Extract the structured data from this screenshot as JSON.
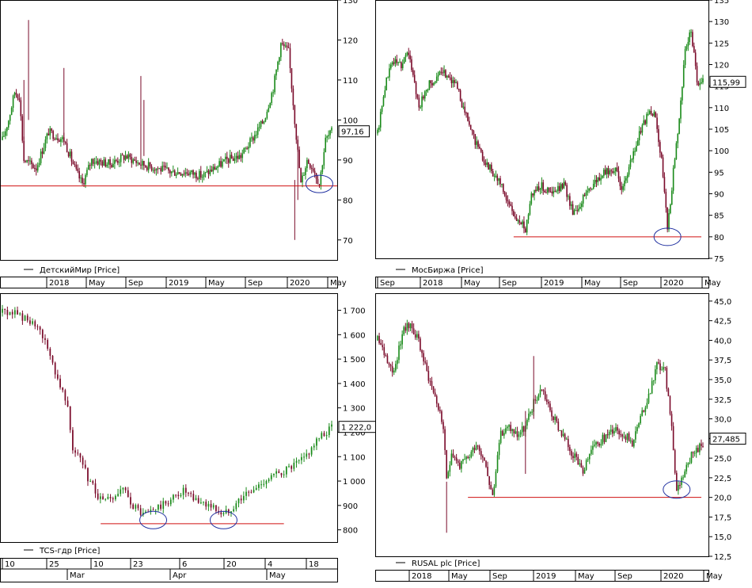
{
  "charts": [
    {
      "type": "candlestick",
      "legend": "ДетскийМир [Price]",
      "last_price_label": "97,16",
      "y_ticks": [
        130,
        120,
        110,
        100,
        90,
        80,
        70
      ],
      "y_tick_labels": [
        "130",
        "120",
        "110",
        "100",
        "90",
        "80",
        "70"
      ],
      "ylim": [
        65,
        130
      ],
      "x_ticks": [
        "2018",
        "May",
        "Sep",
        "2019",
        "May",
        "Sep",
        "2020",
        "May"
      ],
      "support_level": 83.5,
      "last_value": 97.16,
      "anchors": [
        [
          0,
          95
        ],
        [
          4,
          100
        ],
        [
          8,
          107
        ],
        [
          11,
          106
        ],
        [
          14,
          90
        ],
        [
          22,
          88
        ],
        [
          30,
          97
        ],
        [
          40,
          95
        ],
        [
          48,
          87
        ],
        [
          52,
          84
        ],
        [
          58,
          90
        ],
        [
          70,
          89
        ],
        [
          80,
          91
        ],
        [
          90,
          89
        ],
        [
          100,
          88
        ],
        [
          110,
          87
        ],
        [
          120,
          87
        ],
        [
          130,
          86
        ],
        [
          138,
          88
        ],
        [
          146,
          90
        ],
        [
          155,
          91
        ],
        [
          162,
          95
        ],
        [
          170,
          100
        ],
        [
          176,
          108
        ],
        [
          181,
          119
        ],
        [
          186,
          117
        ],
        [
          190,
          100
        ],
        [
          194,
          84
        ],
        [
          198,
          90
        ],
        [
          202,
          88
        ],
        [
          206,
          84
        ],
        [
          210,
          95
        ],
        [
          214,
          97
        ]
      ],
      "n": 215,
      "spikes": [
        [
          17,
          125,
          100
        ],
        [
          14,
          110,
          95
        ],
        [
          40,
          113,
          95
        ],
        [
          90,
          111,
          90
        ],
        [
          92,
          105,
          91
        ],
        [
          190,
          85,
          70
        ],
        [
          192,
          95,
          80
        ]
      ],
      "circle_index": 206,
      "circle_value": 84
    },
    {
      "type": "candlestick",
      "legend": "МосБиржа [Price]",
      "last_price_label": "115,99",
      "y_ticks": [
        135,
        130,
        125,
        120,
        115,
        110,
        105,
        100,
        95,
        90,
        85,
        80,
        75
      ],
      "y_tick_labels": [
        "135",
        "130",
        "125",
        "120",
        "115",
        "110",
        "105",
        "100",
        "95",
        "90",
        "85",
        "80",
        "75"
      ],
      "ylim": [
        75,
        135
      ],
      "x_ticks": [
        "Sep",
        "2018",
        "May",
        "Sep",
        "2019",
        "May",
        "Sep",
        "2020",
        "May"
      ],
      "support_level": 80,
      "last_value": 115.99,
      "anchors": [
        [
          0,
          104
        ],
        [
          5,
          115
        ],
        [
          10,
          121
        ],
        [
          16,
          120
        ],
        [
          20,
          123
        ],
        [
          24,
          118
        ],
        [
          28,
          110
        ],
        [
          34,
          115
        ],
        [
          40,
          117
        ],
        [
          46,
          118
        ],
        [
          52,
          116
        ],
        [
          58,
          110
        ],
        [
          64,
          104
        ],
        [
          70,
          99
        ],
        [
          76,
          96
        ],
        [
          82,
          93
        ],
        [
          88,
          88
        ],
        [
          94,
          84
        ],
        [
          100,
          82
        ],
        [
          104,
          90
        ],
        [
          110,
          92
        ],
        [
          118,
          90
        ],
        [
          126,
          92
        ],
        [
          132,
          86
        ],
        [
          136,
          87
        ],
        [
          142,
          91
        ],
        [
          148,
          93
        ],
        [
          154,
          95
        ],
        [
          160,
          96
        ],
        [
          166,
          91
        ],
        [
          172,
          98
        ],
        [
          178,
          105
        ],
        [
          184,
          109
        ],
        [
          188,
          108
        ],
        [
          192,
          98
        ],
        [
          196,
          82
        ],
        [
          200,
          95
        ],
        [
          204,
          108
        ],
        [
          208,
          123
        ],
        [
          212,
          128
        ],
        [
          216,
          116
        ],
        [
          220,
          116
        ]
      ],
      "n": 221,
      "spikes": [],
      "circle_index": 196,
      "circle_value": 80
    },
    {
      "type": "candlestick",
      "legend": "TCS-гдр [Price]",
      "last_price_label": "1 222,0",
      "y_ticks": [
        1700,
        1600,
        1500,
        1400,
        1300,
        1200,
        1100,
        1000,
        900,
        800
      ],
      "y_tick_labels": [
        "1 700",
        "1 600",
        "1 500",
        "1 400",
        "1 300",
        "1 200",
        "1 100",
        "1 000",
        "900",
        "800"
      ],
      "ylim": [
        750,
        1770
      ],
      "x_ticks": [
        "10",
        "25",
        "Mar",
        "10",
        "23",
        "Apr",
        "6",
        "20",
        "4",
        "May",
        "18"
      ],
      "support_level": 825,
      "last_value": 1222,
      "anchors": [
        [
          0,
          1690
        ],
        [
          5,
          1690
        ],
        [
          10,
          1660
        ],
        [
          14,
          1620
        ],
        [
          18,
          1550
        ],
        [
          22,
          1420
        ],
        [
          26,
          1320
        ],
        [
          28,
          1130
        ],
        [
          31,
          1090
        ],
        [
          34,
          1010
        ],
        [
          37,
          960
        ],
        [
          40,
          910
        ],
        [
          44,
          930
        ],
        [
          48,
          960
        ],
        [
          52,
          900
        ],
        [
          56,
          860
        ],
        [
          60,
          880
        ],
        [
          64,
          900
        ],
        [
          68,
          930
        ],
        [
          72,
          960
        ],
        [
          76,
          920
        ],
        [
          80,
          910
        ],
        [
          84,
          890
        ],
        [
          88,
          860
        ],
        [
          92,
          900
        ],
        [
          96,
          940
        ],
        [
          100,
          960
        ],
        [
          104,
          1000
        ],
        [
          108,
          1020
        ],
        [
          112,
          1040
        ],
        [
          116,
          1060
        ],
        [
          120,
          1090
        ],
        [
          124,
          1150
        ],
        [
          128,
          1190
        ],
        [
          131,
          1222
        ]
      ],
      "n": 132,
      "spikes": [],
      "circles": [
        [
          60,
          840
        ],
        [
          88,
          840
        ]
      ]
    },
    {
      "type": "candlestick",
      "legend": "RUSAL plc [Price]",
      "last_price_label": "27,485",
      "y_ticks": [
        45.0,
        42.5,
        40.0,
        37.5,
        35.0,
        32.5,
        30.0,
        27.5,
        25.0,
        22.5,
        20.0,
        17.5,
        15.0,
        12.5
      ],
      "y_tick_labels": [
        "45,0",
        "42,5",
        "40,0",
        "37,5",
        "35,0",
        "32,5",
        "30,0",
        "27,5",
        "25,0",
        "22,5",
        "20,0",
        "17,5",
        "15,0",
        "12,5"
      ],
      "ylim": [
        12.5,
        46
      ],
      "x_ticks": [
        "2018",
        "May",
        "Sep",
        "2019",
        "May",
        "Sep",
        "2020",
        "May"
      ],
      "support_level": 20,
      "last_value": 27.485,
      "anchors": [
        [
          0,
          40
        ],
        [
          5,
          38
        ],
        [
          10,
          36
        ],
        [
          15,
          41
        ],
        [
          20,
          42
        ],
        [
          25,
          40
        ],
        [
          30,
          36
        ],
        [
          35,
          33
        ],
        [
          40,
          29
        ],
        [
          42,
          22
        ],
        [
          45,
          26
        ],
        [
          50,
          24
        ],
        [
          55,
          25
        ],
        [
          60,
          27
        ],
        [
          65,
          25
        ],
        [
          70,
          20
        ],
        [
          75,
          28
        ],
        [
          80,
          29
        ],
        [
          85,
          28
        ],
        [
          90,
          29
        ],
        [
          95,
          32
        ],
        [
          100,
          34
        ],
        [
          105,
          31
        ],
        [
          110,
          29
        ],
        [
          115,
          27
        ],
        [
          120,
          25
        ],
        [
          125,
          23
        ],
        [
          130,
          26
        ],
        [
          135,
          27
        ],
        [
          140,
          28
        ],
        [
          145,
          29
        ],
        [
          150,
          28
        ],
        [
          155,
          27
        ],
        [
          160,
          30
        ],
        [
          165,
          33
        ],
        [
          170,
          37
        ],
        [
          175,
          36
        ],
        [
          178,
          31
        ],
        [
          182,
          21
        ],
        [
          186,
          23
        ],
        [
          190,
          25
        ],
        [
          194,
          26
        ],
        [
          198,
          27
        ]
      ],
      "n": 199,
      "spikes": [
        [
          42,
          22,
          15.5
        ],
        [
          90,
          31,
          23
        ],
        [
          95,
          38,
          30
        ]
      ],
      "circle_index": 182,
      "circle_value": 21
    }
  ]
}
